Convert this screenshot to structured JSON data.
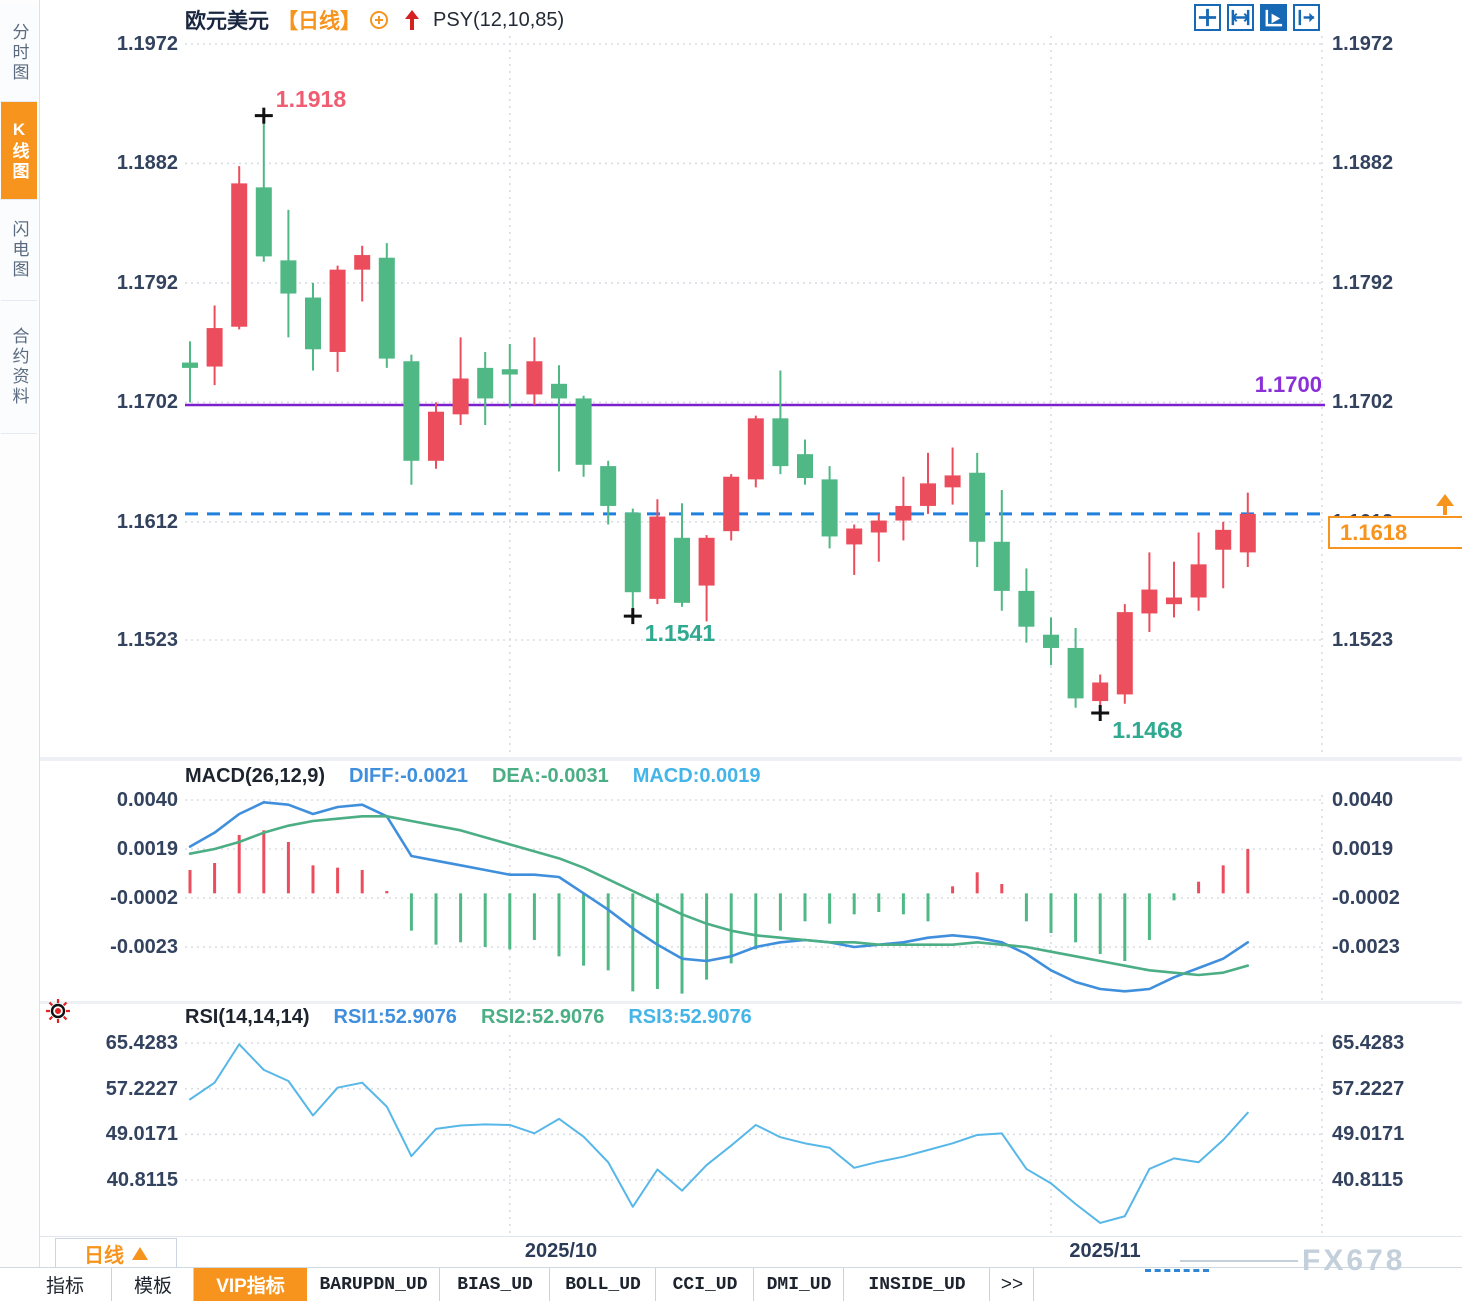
{
  "header": {
    "symbol": "欧元美元",
    "period_tag": "【日线】",
    "overlay_indicator": "PSY(12,10,85)",
    "toolbar_icons": [
      "pan-icon",
      "axis-range-icon",
      "axis-pointer-icon",
      "collapse-icon"
    ]
  },
  "sidebar": {
    "tabs": [
      {
        "label": "分时图",
        "active": false
      },
      {
        "label": "K线图",
        "active": true
      },
      {
        "label": "闪电图",
        "active": false
      },
      {
        "label": "合约资料",
        "active": false
      }
    ]
  },
  "colors": {
    "up": "#ec4d5c",
    "down": "#4fb885",
    "diff_line": "#3f8fdc",
    "dea_line": "#4cae85",
    "rsi_line": "#57b7e8",
    "grid": "#d8dde4",
    "hline_purple": "#7c21cc",
    "current_price_blue": "#2080dd",
    "accent_orange": "#f7941d",
    "anno_high": "#f05c72",
    "anno_low": "#2fa98f"
  },
  "chart_data": {
    "type": "candlestick",
    "symbol": "欧元美元",
    "period": "日线",
    "price_ticks": [
      {
        "label": "1.1972",
        "value": 1.1972
      },
      {
        "label": "1.1882",
        "value": 1.1882
      },
      {
        "label": "1.1792",
        "value": 1.1792
      },
      {
        "label": "1.1702",
        "value": 1.1702
      },
      {
        "label": "1.1612",
        "value": 1.1612
      },
      {
        "label": "1.1523",
        "value": 1.1523
      }
    ],
    "x_ticks": [
      {
        "label": "2025/10",
        "index": 13
      },
      {
        "label": "2025/11",
        "index": 35
      }
    ],
    "candles_ohlc": [
      [
        1.1732,
        1.1748,
        1.1702,
        1.1728
      ],
      [
        1.1729,
        1.1775,
        1.1715,
        1.1758
      ],
      [
        1.1759,
        1.188,
        1.1757,
        1.1867
      ],
      [
        1.1864,
        1.1918,
        1.1808,
        1.1812
      ],
      [
        1.1809,
        1.1847,
        1.1751,
        1.1784
      ],
      [
        1.1781,
        1.1792,
        1.1726,
        1.1742
      ],
      [
        1.174,
        1.1805,
        1.1725,
        1.1802
      ],
      [
        1.1802,
        1.182,
        1.1778,
        1.1813
      ],
      [
        1.1811,
        1.1822,
        1.1728,
        1.1735
      ],
      [
        1.1733,
        1.1738,
        1.164,
        1.1658
      ],
      [
        1.1658,
        1.1702,
        1.1652,
        1.1695
      ],
      [
        1.1693,
        1.1751,
        1.1685,
        1.172
      ],
      [
        1.1728,
        1.174,
        1.1685,
        1.1705
      ],
      [
        1.1727,
        1.1746,
        1.1698,
        1.1723
      ],
      [
        1.1708,
        1.1751,
        1.17,
        1.1733
      ],
      [
        1.1716,
        1.173,
        1.165,
        1.1705
      ],
      [
        1.1705,
        1.1707,
        1.1646,
        1.1655
      ],
      [
        1.1654,
        1.1658,
        1.161,
        1.1624
      ],
      [
        1.1619,
        1.1622,
        1.1541,
        1.1559
      ],
      [
        1.1554,
        1.1629,
        1.155,
        1.1616
      ],
      [
        1.16,
        1.1626,
        1.1548,
        1.1551
      ],
      [
        1.1564,
        1.1602,
        1.1537,
        1.16
      ],
      [
        1.1605,
        1.1648,
        1.1598,
        1.1646
      ],
      [
        1.1644,
        1.1692,
        1.1638,
        1.169
      ],
      [
        1.169,
        1.1726,
        1.1648,
        1.1654
      ],
      [
        1.1663,
        1.1674,
        1.164,
        1.1645
      ],
      [
        1.1644,
        1.1654,
        1.1592,
        1.1601
      ],
      [
        1.1595,
        1.161,
        1.1572,
        1.1607
      ],
      [
        1.1604,
        1.1618,
        1.1582,
        1.1613
      ],
      [
        1.1613,
        1.1646,
        1.1598,
        1.1624
      ],
      [
        1.1624,
        1.1664,
        1.1618,
        1.1641
      ],
      [
        1.1638,
        1.1668,
        1.1625,
        1.1647
      ],
      [
        1.1649,
        1.1664,
        1.1578,
        1.1597
      ],
      [
        1.1597,
        1.1636,
        1.1545,
        1.156
      ],
      [
        1.156,
        1.1577,
        1.1521,
        1.1533
      ],
      [
        1.1527,
        1.154,
        1.1504,
        1.1517
      ],
      [
        1.1517,
        1.1532,
        1.1472,
        1.1479
      ],
      [
        1.1477,
        1.1497,
        1.1468,
        1.1491
      ],
      [
        1.1482,
        1.155,
        1.1475,
        1.1544
      ],
      [
        1.1543,
        1.1589,
        1.1529,
        1.1561
      ],
      [
        1.155,
        1.1582,
        1.154,
        1.1555
      ],
      [
        1.1555,
        1.1604,
        1.1545,
        1.158
      ],
      [
        1.1591,
        1.1612,
        1.1562,
        1.1606
      ],
      [
        1.1589,
        1.1634,
        1.1578,
        1.1618
      ]
    ],
    "annotations": {
      "high": {
        "label": "1.1918",
        "index": 3,
        "price": 1.1918
      },
      "low_oct": {
        "label": "1.1541",
        "index": 18,
        "price": 1.1541
      },
      "low_nov": {
        "label": "1.1468",
        "index": 37,
        "price": 1.1468
      },
      "hline_label": "1.1700",
      "hline_value": 1.17,
      "last_price": "1.1618",
      "last_price_value": 1.1618
    },
    "macd": {
      "title": "MACD(26,12,9)",
      "display": {
        "diff": "DIFF:-0.0021",
        "dea": "DEA:-0.0031",
        "macd": "MACD:0.0019"
      },
      "ticks": [
        {
          "label": "0.0040",
          "value": 0.004
        },
        {
          "label": "0.0019",
          "value": 0.0019
        },
        {
          "label": "-0.0002",
          "value": -0.0002
        },
        {
          "label": "-0.0023",
          "value": -0.0023
        }
      ],
      "hist": [
        0.001,
        0.0013,
        0.0025,
        0.0027,
        0.0022,
        0.0012,
        0.0011,
        0.001,
        0.0001,
        -0.0016,
        -0.0022,
        -0.0021,
        -0.0023,
        -0.0024,
        -0.002,
        -0.0027,
        -0.0031,
        -0.0033,
        -0.0042,
        -0.0041,
        -0.0043,
        -0.0037,
        -0.003,
        -0.0024,
        -0.0016,
        -0.0012,
        -0.0013,
        -0.0009,
        -0.0008,
        -0.0009,
        -0.0012,
        0.0003,
        0.0009,
        0.0004,
        -0.0012,
        -0.0017,
        -0.0021,
        -0.0026,
        -0.0029,
        -0.002,
        -0.0003,
        0.0005,
        0.0012,
        0.0019
      ],
      "diff": [
        0.002,
        0.0026,
        0.0034,
        0.0039,
        0.0038,
        0.0034,
        0.0037,
        0.0038,
        0.0033,
        0.0016,
        0.0014,
        0.0012,
        0.001,
        0.0008,
        0.0008,
        0.0007,
        0.0,
        -0.0007,
        -0.0015,
        -0.0022,
        -0.0028,
        -0.0029,
        -0.0027,
        -0.0023,
        -0.0021,
        -0.002,
        -0.0021,
        -0.0023,
        -0.0022,
        -0.0021,
        -0.0019,
        -0.0018,
        -0.0019,
        -0.0021,
        -0.0026,
        -0.0033,
        -0.0038,
        -0.0041,
        -0.0042,
        -0.0041,
        -0.0036,
        -0.0032,
        -0.0028,
        -0.0021
      ],
      "dea": [
        0.0017,
        0.0019,
        0.0022,
        0.0026,
        0.0029,
        0.0031,
        0.0032,
        0.0033,
        0.0033,
        0.0031,
        0.0029,
        0.0027,
        0.0024,
        0.0021,
        0.0018,
        0.0015,
        0.0011,
        0.0006,
        0.0001,
        -0.0004,
        -0.0009,
        -0.0013,
        -0.0016,
        -0.0018,
        -0.0019,
        -0.002,
        -0.0021,
        -0.0021,
        -0.0022,
        -0.0022,
        -0.0022,
        -0.0022,
        -0.0021,
        -0.0022,
        -0.0023,
        -0.0025,
        -0.0027,
        -0.0029,
        -0.0031,
        -0.0033,
        -0.0034,
        -0.0035,
        -0.0034,
        -0.0031
      ]
    },
    "rsi": {
      "title": "RSI(14,14,14)",
      "display": {
        "rsi1": "RSI1:52.9076",
        "rsi2": "RSI2:52.9076",
        "rsi3": "RSI3:52.9076"
      },
      "ticks": [
        {
          "label": "65.4283",
          "value": 65.4283
        },
        {
          "label": "57.2227",
          "value": 57.2227
        },
        {
          "label": "49.0171",
          "value": 49.0171
        },
        {
          "label": "40.8115",
          "value": 40.8115
        }
      ],
      "values": [
        55.3,
        58.3,
        65.2,
        60.6,
        58.6,
        52.4,
        57.4,
        58.3,
        54.0,
        45.1,
        50.0,
        50.6,
        50.8,
        50.7,
        49.2,
        51.8,
        48.6,
        44.0,
        36.0,
        42.7,
        38.9,
        43.5,
        47.0,
        50.7,
        48.5,
        47.4,
        46.6,
        43.0,
        44.1,
        45.0,
        46.2,
        47.4,
        48.9,
        49.2,
        42.8,
        40.2,
        36.5,
        33.1,
        34.3,
        42.8,
        44.7,
        44.0,
        48.0,
        52.9
      ]
    }
  },
  "footer": {
    "period_button": "日线",
    "x_labels": [
      "2025/10",
      "2025/11"
    ],
    "tabs": [
      {
        "label": "指标",
        "active": false
      },
      {
        "label": "模板",
        "active": false
      },
      {
        "label": "VIP指标",
        "active": true
      },
      {
        "label": "BARUPDN_UD",
        "active": false
      },
      {
        "label": "BIAS_UD",
        "active": false
      },
      {
        "label": "BOLL_UD",
        "active": false
      },
      {
        "label": "CCI_UD",
        "active": false
      },
      {
        "label": "DMI_UD",
        "active": false
      },
      {
        "label": "INSIDE_UD",
        "active": false
      },
      {
        "label": ">>",
        "active": false
      }
    ],
    "watermark": "FX678"
  }
}
